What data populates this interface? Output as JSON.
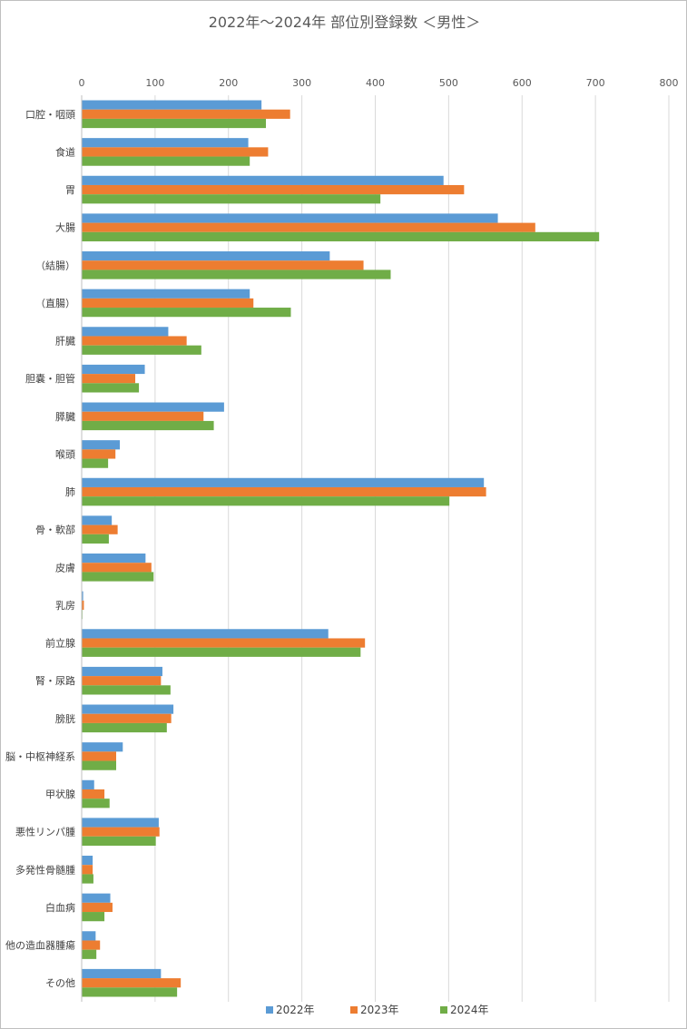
{
  "chart_data": {
    "type": "bar",
    "orientation": "horizontal",
    "title": "2022年～2024年 部位別登録数 ＜男性＞",
    "xlabel": "",
    "ylabel": "",
    "xlim": [
      0,
      800
    ],
    "xticks": [
      0,
      100,
      200,
      300,
      400,
      500,
      600,
      700,
      800
    ],
    "x_axis_position": "top",
    "grid": true,
    "legend_position": "bottom",
    "categories": [
      "口腔・咽頭",
      "食道",
      "胃",
      "大腸",
      "（結腸）",
      "（直腸）",
      "肝臓",
      "胆嚢・胆管",
      "膵臓",
      "喉頭",
      "肺",
      "骨・軟部",
      "皮膚",
      "乳房",
      "前立腺",
      "腎・尿路",
      "膀胱",
      "脳・中枢神経系",
      "甲状腺",
      "悪性リンパ腫",
      "多発性骨髄腫",
      "白血病",
      "他の造血器腫瘍",
      "その他"
    ],
    "series": [
      {
        "name": "2022年",
        "color": "#5b9bd5",
        "values": [
          245,
          227,
          493,
          567,
          338,
          229,
          118,
          86,
          194,
          52,
          548,
          41,
          87,
          2,
          336,
          110,
          125,
          56,
          17,
          105,
          15,
          39,
          19,
          108
        ]
      },
      {
        "name": "2023年",
        "color": "#ed7d31",
        "values": [
          284,
          254,
          521,
          618,
          384,
          234,
          143,
          73,
          166,
          46,
          551,
          49,
          95,
          3,
          386,
          108,
          122,
          47,
          31,
          106,
          15,
          42,
          25,
          135
        ]
      },
      {
        "name": "2024年",
        "color": "#70ad47",
        "values": [
          251,
          229,
          407,
          705,
          421,
          285,
          163,
          78,
          180,
          36,
          501,
          37,
          98,
          1,
          380,
          121,
          116,
          47,
          38,
          101,
          16,
          31,
          20,
          130
        ]
      }
    ]
  }
}
